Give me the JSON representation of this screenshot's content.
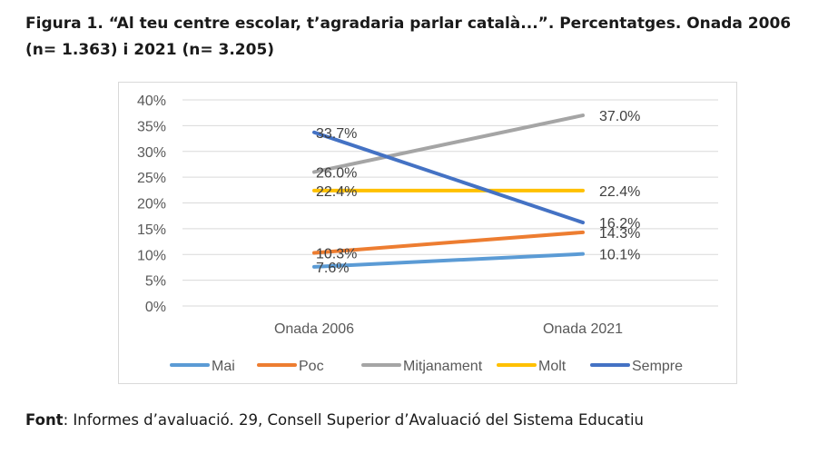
{
  "figure": {
    "title": "Figura 1. “Al teu centre escolar, t’agradaria parlar català...”. Percentatges. Onada 2006 (n= 1.363) i 2021 (n= 3.205)",
    "source_label": "Font",
    "source_text": ": Informes d’avaluació. 29, Consell Superior d’Avaluació del  Sistema Educatiu"
  },
  "chart_data": {
    "type": "line",
    "categories": [
      "Onada 2006",
      "Onada 2021"
    ],
    "series": [
      {
        "name": "Mai",
        "values": [
          7.6,
          10.1
        ],
        "labels": [
          "7.6%",
          "10.1%"
        ],
        "color": "#5b9bd5"
      },
      {
        "name": "Poc",
        "values": [
          10.3,
          14.3
        ],
        "labels": [
          "10.3%",
          "14.3%"
        ],
        "color": "#ed7d31"
      },
      {
        "name": "Mitjanament",
        "values": [
          26.0,
          37.0
        ],
        "labels": [
          "26.0%",
          "37.0%"
        ],
        "color": "#a5a5a5"
      },
      {
        "name": "Molt",
        "values": [
          22.4,
          22.4
        ],
        "labels": [
          "22.4%",
          "22.4%"
        ],
        "color": "#ffc000"
      },
      {
        "name": "Sempre",
        "values": [
          33.7,
          16.2
        ],
        "labels": [
          "33.7%",
          "16.2%"
        ],
        "color": "#4472c4"
      }
    ],
    "ylim": [
      0,
      40
    ],
    "yticks": [
      "0%",
      "5%",
      "10%",
      "15%",
      "20%",
      "25%",
      "30%",
      "35%",
      "40%"
    ],
    "grid": true,
    "legend": "bottom"
  }
}
